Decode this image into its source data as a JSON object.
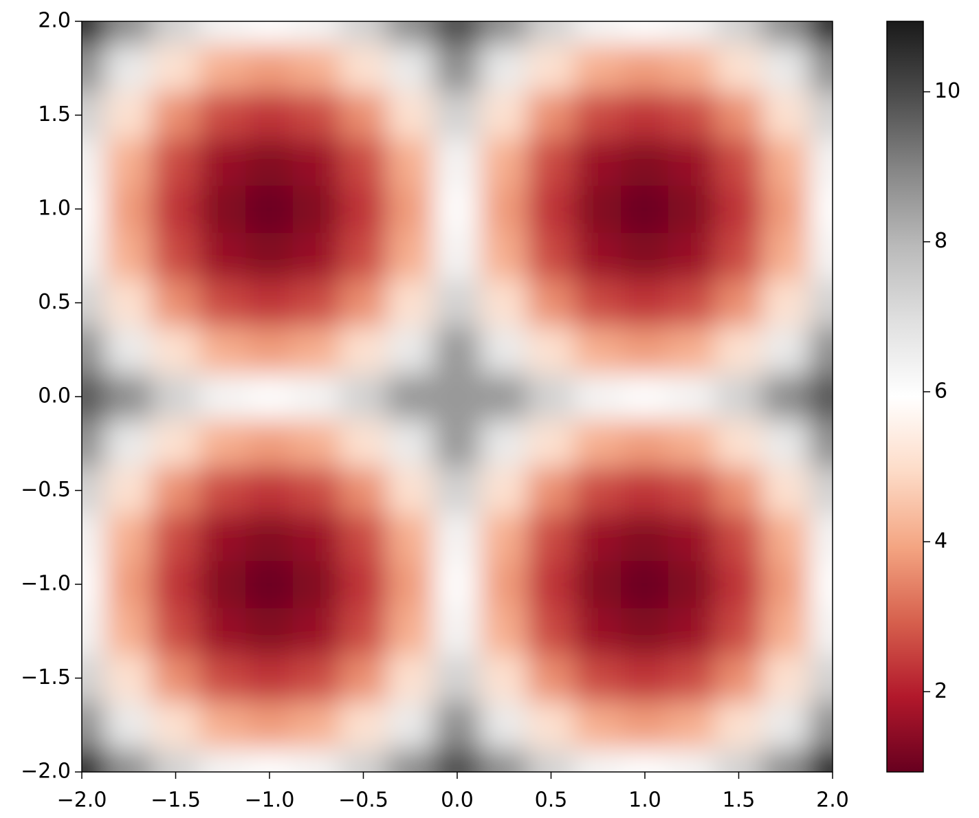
{
  "chart_data": {
    "type": "heatmap",
    "x": [
      -2,
      -1.75,
      -1.5,
      -1.25,
      -1,
      -0.75,
      -0.5,
      -0.25,
      0,
      0.25,
      0.5,
      0.75,
      1,
      1.25,
      1.5,
      1.75,
      2
    ],
    "y": [
      -2,
      -1.75,
      -1.5,
      -1.25,
      -1,
      -0.75,
      -0.5,
      -0.25,
      0,
      0.25,
      0.5,
      0.75,
      1,
      1.25,
      1.5,
      1.75,
      2
    ],
    "z": [
      [
        11,
        8.8,
        7.3,
        6.3,
        6,
        6.3,
        7.3,
        8.8,
        10,
        8.8,
        7.3,
        6.3,
        6,
        6.3,
        7.3,
        8.8,
        11
      ],
      [
        8.8,
        6.6,
        5.1,
        4.1,
        3.8,
        4.1,
        5.1,
        6.6,
        8.8,
        6.6,
        5.1,
        4.1,
        3.8,
        4.1,
        5.1,
        6.6,
        8.8
      ],
      [
        7.3,
        5.1,
        3.6,
        2.6,
        2.3,
        2.6,
        3.6,
        5.1,
        7.3,
        5.1,
        3.6,
        2.6,
        2.3,
        2.6,
        3.6,
        5.1,
        7.3
      ],
      [
        6.3,
        4.1,
        2.6,
        1.6,
        1.3,
        1.6,
        2.6,
        4.1,
        6.3,
        4.1,
        2.6,
        1.6,
        1.3,
        1.6,
        2.6,
        4.1,
        6.3
      ],
      [
        6,
        3.8,
        2.3,
        1.3,
        1,
        1.3,
        2.3,
        3.8,
        6,
        3.8,
        2.3,
        1.3,
        1,
        1.3,
        2.3,
        3.8,
        6
      ],
      [
        6.3,
        4.1,
        2.6,
        1.6,
        1.3,
        1.6,
        2.6,
        4.1,
        6.3,
        4.1,
        2.6,
        1.6,
        1.3,
        1.6,
        2.6,
        4.1,
        6.3
      ],
      [
        7.3,
        5.1,
        3.6,
        2.6,
        2.3,
        2.6,
        3.6,
        5.1,
        7.3,
        5.1,
        3.6,
        2.6,
        2.3,
        2.6,
        3.6,
        5.1,
        7.3
      ],
      [
        8.8,
        6.6,
        5.1,
        4.1,
        3.8,
        4.1,
        5.1,
        6.6,
        8.6,
        6.6,
        5.1,
        4.1,
        3.8,
        4.1,
        5.1,
        6.6,
        8.8
      ],
      [
        9.8,
        8.8,
        7.3,
        6.3,
        6,
        6.3,
        7.3,
        8.6,
        8.6,
        8.6,
        7.3,
        6.3,
        6,
        6.3,
        7.3,
        8.8,
        9.8
      ],
      [
        8.8,
        6.6,
        5.1,
        4.1,
        3.8,
        4.1,
        5.1,
        6.6,
        8.6,
        6.6,
        5.1,
        4.1,
        3.8,
        4.1,
        5.1,
        6.6,
        8.8
      ],
      [
        7.3,
        5.1,
        3.6,
        2.6,
        2.3,
        2.6,
        3.6,
        5.1,
        7.3,
        5.1,
        3.6,
        2.6,
        2.3,
        2.6,
        3.6,
        5.1,
        7.3
      ],
      [
        6.3,
        4.1,
        2.6,
        1.6,
        1.3,
        1.6,
        2.6,
        4.1,
        6.3,
        4.1,
        2.6,
        1.6,
        1.3,
        1.6,
        2.6,
        4.1,
        6.3
      ],
      [
        6,
        3.8,
        2.3,
        1.3,
        1,
        1.3,
        2.3,
        3.8,
        6,
        3.8,
        2.3,
        1.3,
        1,
        1.3,
        2.3,
        3.8,
        6
      ],
      [
        6.3,
        4.1,
        2.6,
        1.6,
        1.3,
        1.6,
        2.6,
        4.1,
        6.3,
        4.1,
        2.6,
        1.6,
        1.3,
        1.6,
        2.6,
        4.1,
        6.3
      ],
      [
        7.3,
        5.1,
        3.6,
        2.6,
        2.3,
        2.6,
        3.6,
        5.1,
        7.3,
        5.1,
        3.6,
        2.6,
        2.3,
        2.6,
        3.6,
        5.1,
        7.3
      ],
      [
        8.8,
        6.6,
        5.1,
        4.1,
        3.8,
        4.1,
        5.1,
        6.6,
        8.8,
        6.6,
        5.1,
        4.1,
        3.8,
        4.1,
        5.1,
        6.6,
        8.8
      ],
      [
        11,
        8.8,
        7.3,
        6.3,
        6,
        6.3,
        7.3,
        8.8,
        10,
        8.8,
        7.3,
        6.3,
        6,
        6.3,
        7.3,
        8.8,
        11
      ]
    ],
    "xlim": [
      -2,
      2
    ],
    "ylim": [
      -2,
      2
    ],
    "xticks": [
      {
        "value": -2,
        "label": "−2.0"
      },
      {
        "value": -1.5,
        "label": "−1.5"
      },
      {
        "value": -1,
        "label": "−1.0"
      },
      {
        "value": -0.5,
        "label": "−0.5"
      },
      {
        "value": 0,
        "label": "0.0"
      },
      0.5,
      {
        "value": 1,
        "label": "1.0"
      },
      1.5,
      {
        "value": 2,
        "label": "2.0"
      }
    ],
    "yticks": [
      {
        "value": -2,
        "label": "−2.0"
      },
      {
        "value": -1.5,
        "label": "−1.5"
      },
      {
        "value": -1,
        "label": "−1.0"
      },
      {
        "value": -0.5,
        "label": "−0.5"
      },
      {
        "value": 0,
        "label": "0.0"
      },
      0.5,
      {
        "value": 1,
        "label": "1.0"
      },
      1.5,
      {
        "value": 2,
        "label": "2.0"
      }
    ],
    "clim": [
      0.93,
      10.94
    ],
    "cticks": [
      2,
      4,
      6,
      8,
      10
    ],
    "colormap": [
      "#67001f",
      "#b2182b",
      "#d6604d",
      "#f4a582",
      "#fddbc7",
      "#ffffff",
      "#e0e0e0",
      "#bababa",
      "#878787",
      "#4d4d4d",
      "#1a1a1a"
    ]
  }
}
